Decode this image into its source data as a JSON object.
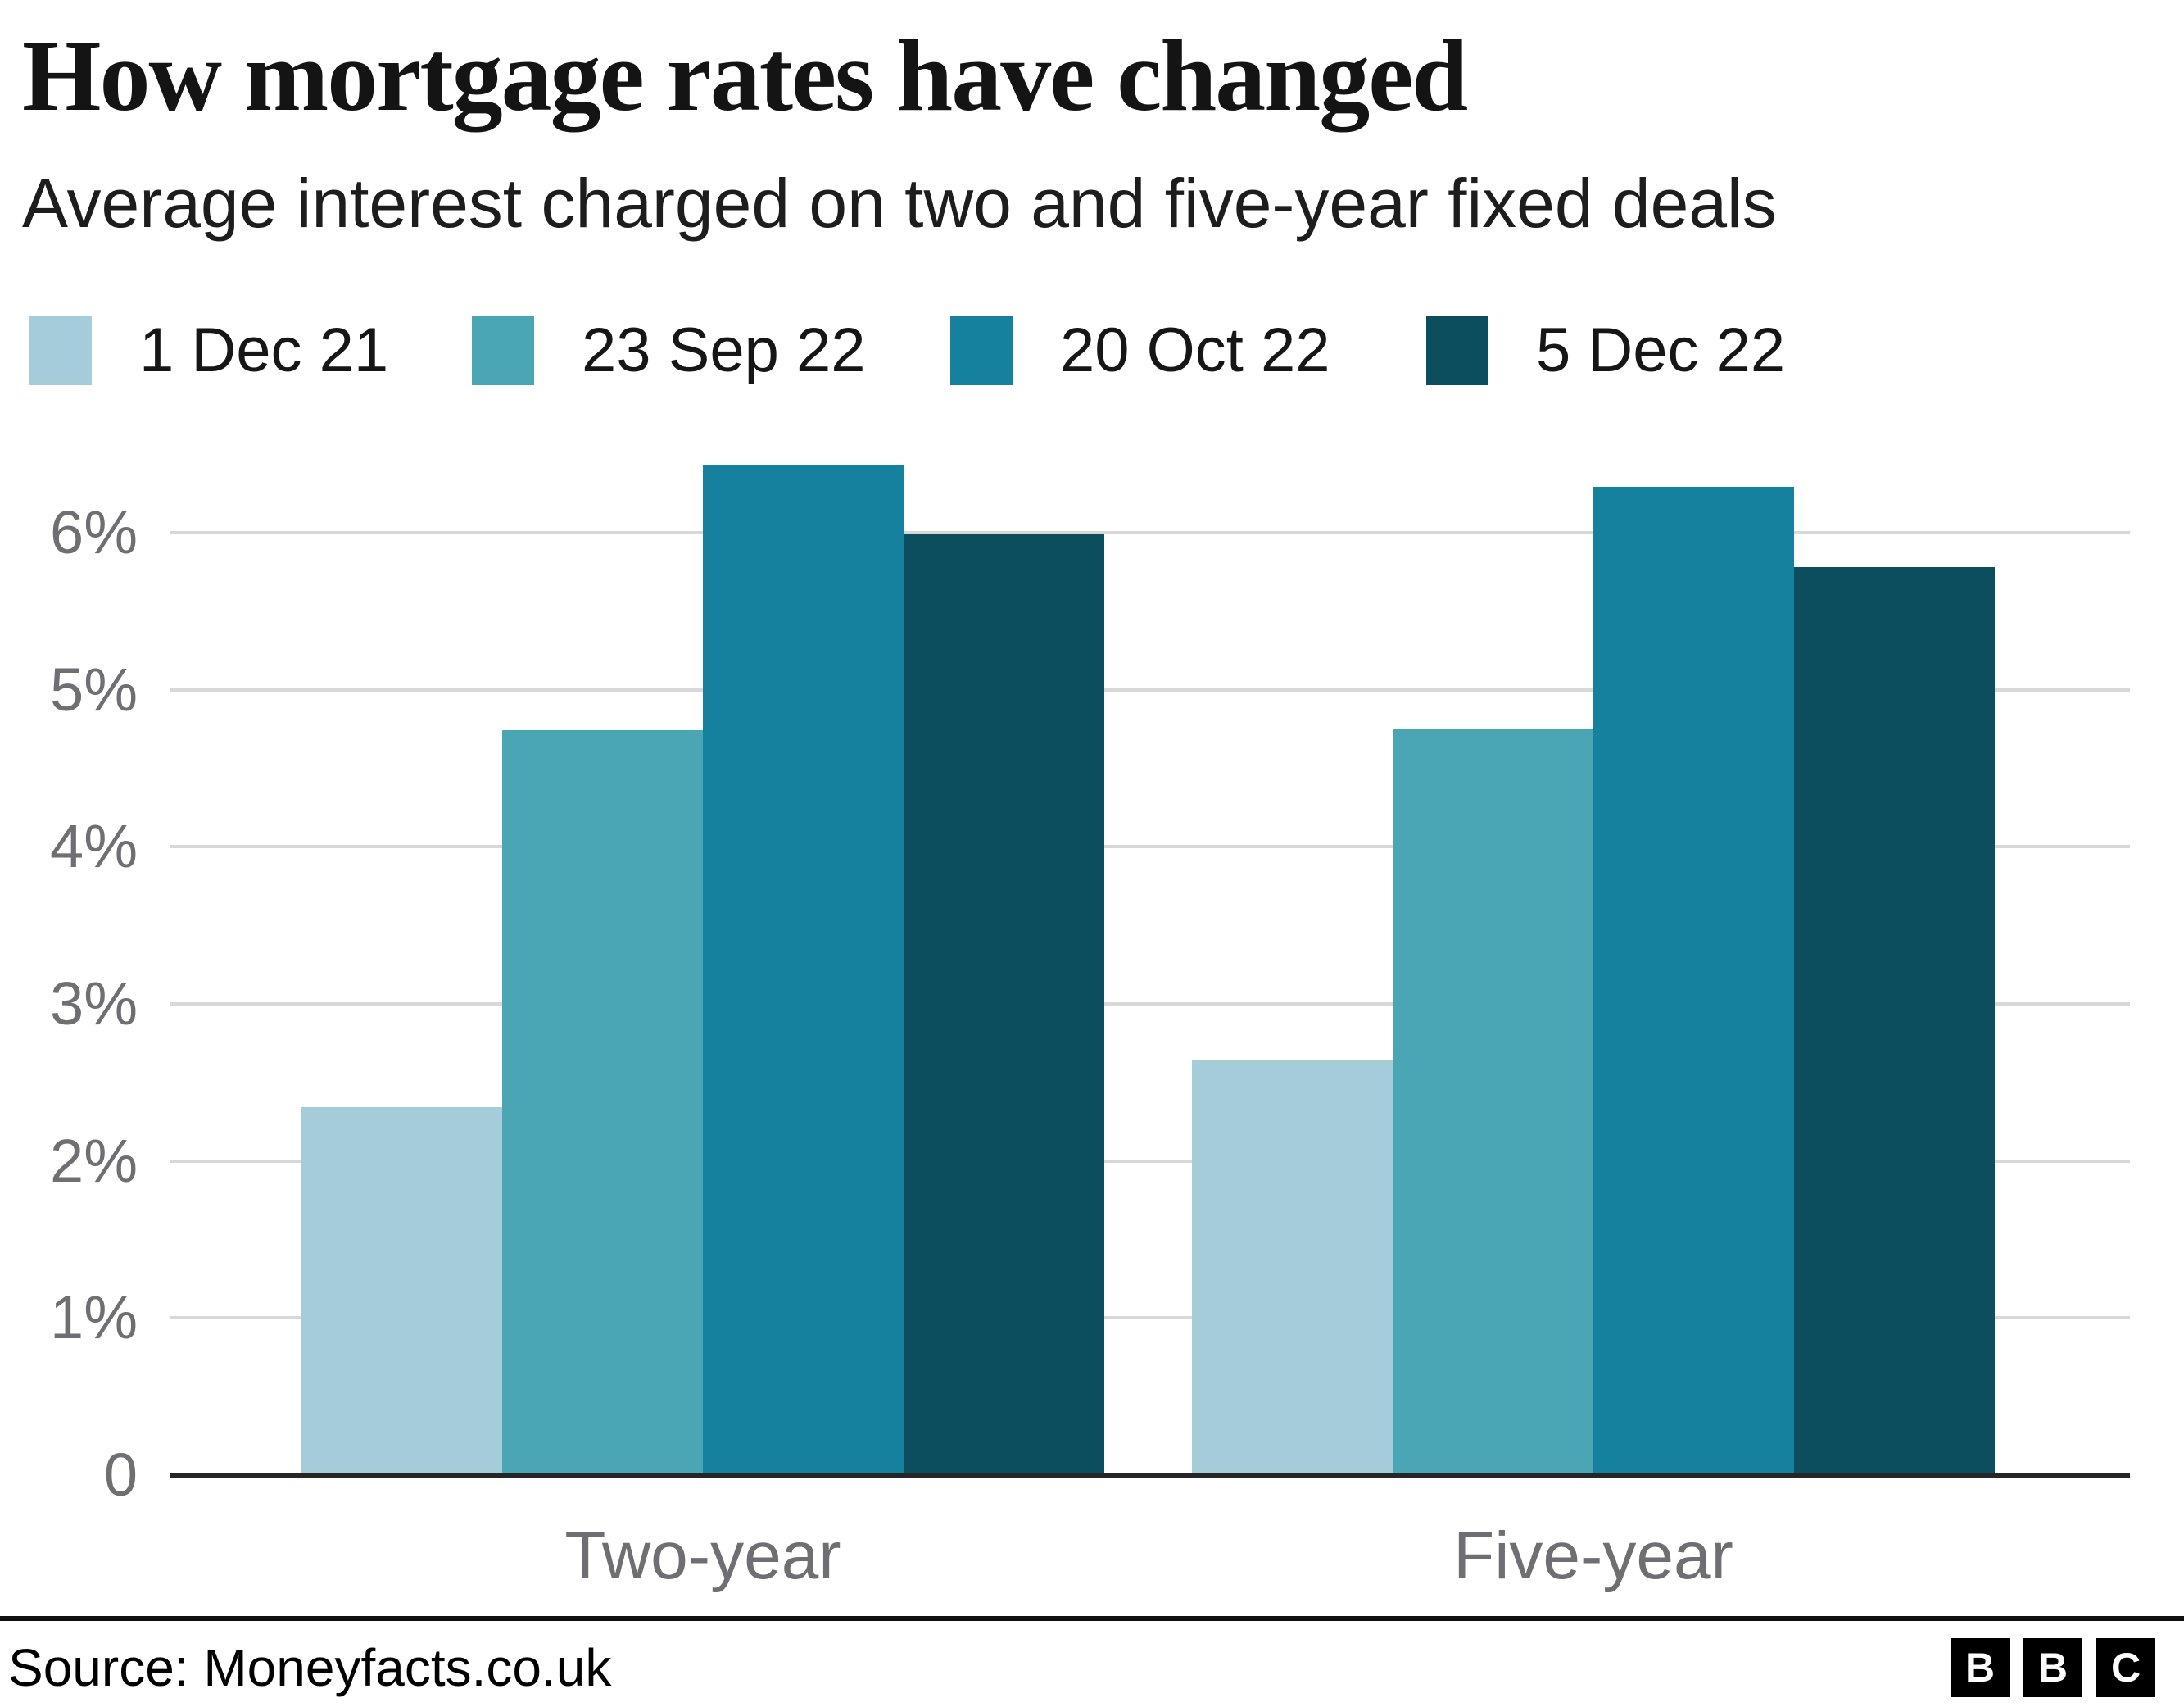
{
  "title": "How mortgage rates have changed",
  "subtitle": "Average interest charged on two and five-year fixed deals",
  "source": "Source: Moneyfacts.co.uk",
  "logo": {
    "letters": [
      "B",
      "B",
      "C"
    ]
  },
  "colors": {
    "series_1_dec_21": "#a4ccd9",
    "series_23_sep_22": "#4aa6b5",
    "series_20_oct_22": "#16809f",
    "series_5_dec_22": "#0c4d5e",
    "gridline": "#d8d8d8",
    "axis": "#262626",
    "muted_text": "#6e6e73"
  },
  "chart_data": {
    "type": "bar",
    "categories": [
      "Two-year",
      "Five-year"
    ],
    "series": [
      {
        "name": "1 Dec 21",
        "color": "#a4ccd9",
        "values": [
          2.34,
          2.64
        ]
      },
      {
        "name": "23 Sep 22",
        "color": "#4aa6b5",
        "values": [
          4.74,
          4.75
        ]
      },
      {
        "name": "20 Oct 22",
        "color": "#16809f",
        "values": [
          6.43,
          6.29
        ]
      },
      {
        "name": "5 Dec 22",
        "color": "#0c4d5e",
        "values": [
          5.99,
          5.78
        ]
      }
    ],
    "title": "How mortgage rates have changed",
    "subtitle": "Average interest charged on two and five-year fixed deals",
    "xlabel": "",
    "ylabel": "",
    "ylim": [
      0,
      6.6
    ],
    "yticks": [
      0,
      1,
      2,
      3,
      4,
      5,
      6
    ],
    "ytick_suffix": "%",
    "grid": true,
    "legend_position": "top"
  }
}
